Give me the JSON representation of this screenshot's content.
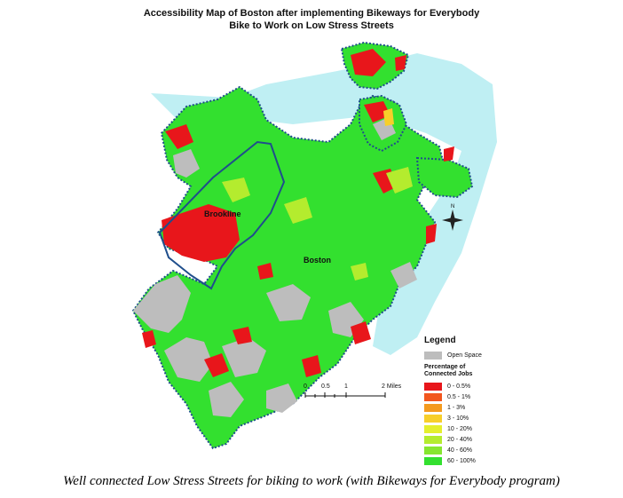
{
  "title": {
    "line1": "Accessibility Map of Boston after implementing Bikeways for Everybody",
    "line2": "Bike to Work on Low Stress Streets"
  },
  "map_labels": {
    "brookline": "Brookline",
    "boston": "Boston"
  },
  "north_arrow": {
    "label": "N"
  },
  "scale": {
    "ticks": [
      "0",
      "0.5",
      "1",
      "2 Miles"
    ]
  },
  "legend": {
    "title": "Legend",
    "open_space": {
      "label": "Open Space",
      "color": "#bdbdbd"
    },
    "subtitle_line1": "Percentage of",
    "subtitle_line2": "Connected Jobs",
    "classes": [
      {
        "label": "0 - 0.5%",
        "color": "#e8161b"
      },
      {
        "label": "0.5 - 1%",
        "color": "#f2561e"
      },
      {
        "label": "1 - 3%",
        "color": "#f49a1e"
      },
      {
        "label": "3 - 10%",
        "color": "#f7cf2a"
      },
      {
        "label": "10 - 20%",
        "color": "#e4ef2d"
      },
      {
        "label": "20 - 40%",
        "color": "#b4ec2e"
      },
      {
        "label": "40 - 60%",
        "color": "#86e62f"
      },
      {
        "label": "60 - 100%",
        "color": "#33e02f"
      }
    ]
  },
  "colors": {
    "water": "#bfeff3",
    "green": "#33e02f",
    "red": "#e8161b",
    "open_space": "#bdbdbd",
    "boundary": "#1f4e8c"
  },
  "caption": "Well connected Low Stress Streets for biking to work (with Bikeways for Everybody program)"
}
